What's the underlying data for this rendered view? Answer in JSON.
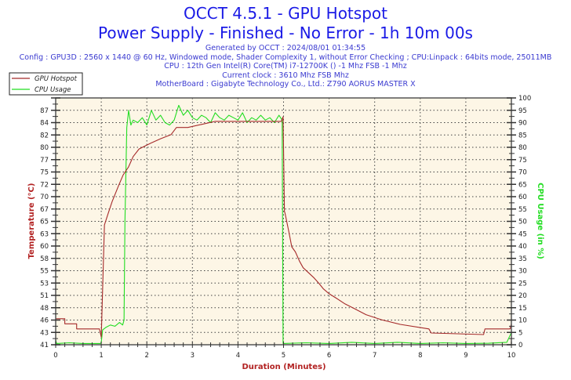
{
  "chart_data": {
    "type": "line",
    "title": "OCCT 4.5.1 - GPU Hotspot",
    "subtitle": "Power Supply - Finished - No Error - 1h 10m 00s",
    "info_lines": [
      "Generated by OCCT : 2024/08/01 01:34:55",
      "Config : GPU3D : 2560 x 1440 @ 60 Hz, Windowed mode, Shader Complexity 1, without Error Checking ; CPU:Linpack : 64bits mode, 25011MB",
      "CPU : 12th Gen Intel(R) Core(TM) i7-12700K () -1 Mhz FSB -1 Mhz",
      "Current clock : 3610 Mhz FSB  Mhz",
      "MotherBoard : Gigabyte Technology Co., Ltd.: Z790 AORUS MASTER X"
    ],
    "xlabel": "Duration (Minutes)",
    "ylabel": "Temperature (°C)",
    "y2label": "CPU Usage (in %)",
    "xlim": [
      0,
      10
    ],
    "ylim": [
      41,
      89.4
    ],
    "y2lim": [
      0,
      100
    ],
    "x_ticks": [
      "0",
      "1",
      "2",
      "3",
      "4",
      "5",
      "6",
      "7",
      "8",
      "9",
      "10"
    ],
    "y_ticks": [
      "41",
      "43",
      "46",
      "48",
      "51",
      "53",
      "55",
      "58",
      "60",
      "63",
      "65",
      "67",
      "70",
      "72",
      "75",
      "77",
      "80",
      "82",
      "84",
      "87"
    ],
    "y2_ticks": [
      "0",
      "5",
      "10",
      "15",
      "20",
      "25",
      "30",
      "35",
      "40",
      "45",
      "50",
      "55",
      "60",
      "65",
      "70",
      "75",
      "80",
      "85",
      "90",
      "95",
      "100"
    ],
    "grid": true,
    "legend_position": "top-left",
    "series": [
      {
        "name": "GPU Hotspot",
        "axis": "left",
        "color": "#a52a2a",
        "x": [
          0,
          0.2,
          0.2,
          0.46,
          0.46,
          0.96,
          1.0,
          1.07,
          1.15,
          1.24,
          1.38,
          1.48,
          1.6,
          1.7,
          1.83,
          2.08,
          2.3,
          2.53,
          2.65,
          2.9,
          3.2,
          3.5,
          3.8,
          4.1,
          4.4,
          4.7,
          4.95,
          4.99,
          5.02,
          5.03,
          5.12,
          5.18,
          5.26,
          5.35,
          5.43,
          5.55,
          5.67,
          5.78,
          5.87,
          6.0,
          6.18,
          6.35,
          6.55,
          6.81,
          7.15,
          7.56,
          8.19,
          8.24,
          9.39,
          9.42,
          9.97,
          10.0
        ],
        "y": [
          46.1,
          46.1,
          45.1,
          45.1,
          44.1,
          44.1,
          42.5,
          64.5,
          66.7,
          69.1,
          72.2,
          74.3,
          75.9,
          77.9,
          79.4,
          80.5,
          81.4,
          82.2,
          83.6,
          83.6,
          84.2,
          84.8,
          84.8,
          84.8,
          84.8,
          84.8,
          84.8,
          85.7,
          67.1,
          66.9,
          63.0,
          60.2,
          59.2,
          57.4,
          56.1,
          55.1,
          54.1,
          53.0,
          52.0,
          51.0,
          50.0,
          49.0,
          48.1,
          46.9,
          45.9,
          45.0,
          44.1,
          43.3,
          43.0,
          44.1,
          44.1,
          45.1
        ]
      },
      {
        "name": "CPU Usage",
        "axis": "right",
        "color": "#22dd22",
        "x": [
          0,
          0.02,
          0.3,
          0.6,
          0.98,
          1.0,
          1.03,
          1.1,
          1.2,
          1.3,
          1.4,
          1.47,
          1.5,
          1.52,
          1.56,
          1.6,
          1.65,
          1.7,
          1.8,
          1.9,
          2.0,
          2.1,
          2.2,
          2.3,
          2.4,
          2.5,
          2.6,
          2.7,
          2.8,
          2.9,
          3.0,
          3.1,
          3.2,
          3.3,
          3.4,
          3.5,
          3.6,
          3.7,
          3.8,
          3.9,
          4.0,
          4.1,
          4.2,
          4.3,
          4.4,
          4.5,
          4.6,
          4.7,
          4.8,
          4.9,
          4.97,
          4.99,
          5.5,
          6.0,
          6.5,
          7.0,
          7.5,
          8.0,
          8.5,
          9.0,
          9.5,
          9.9,
          10.0
        ],
        "y": [
          2,
          0.5,
          0.8,
          0.5,
          0.5,
          1,
          6,
          7,
          8,
          7.5,
          9,
          8,
          10,
          50,
          88,
          95,
          89,
          91,
          90,
          92,
          89,
          95,
          91,
          93,
          90,
          89,
          91,
          97,
          93,
          95,
          92,
          91,
          93,
          92,
          90,
          94,
          92,
          91,
          93,
          92,
          91,
          94,
          90,
          92,
          91,
          93,
          91,
          92,
          90,
          93,
          91,
          0.5,
          0.8,
          0.5,
          1,
          0.5,
          1,
          0.5,
          0.8,
          0.5,
          0.6,
          1,
          5
        ]
      }
    ]
  },
  "colors": {
    "plot_bg": "#fdf6e6",
    "title": "#1a1ae6",
    "axis_left": "#b22222",
    "axis_right": "#22dd22"
  }
}
